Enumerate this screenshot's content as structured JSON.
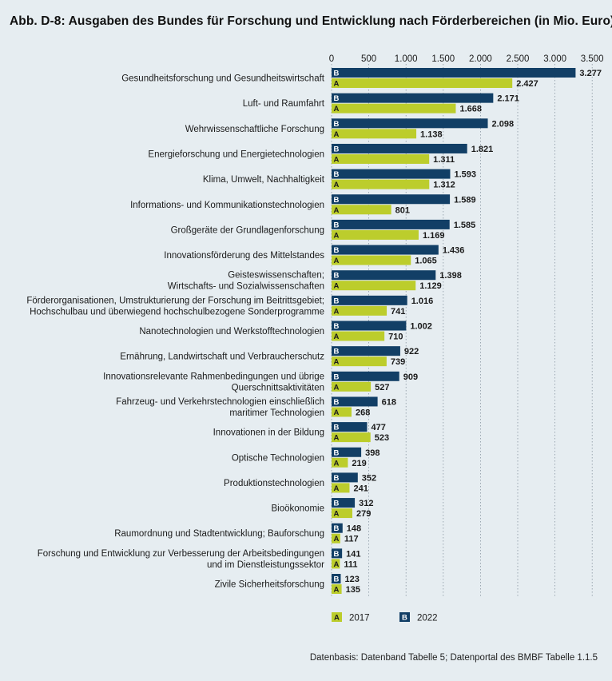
{
  "title": "Abb. D-8: Ausgaben des Bundes für Forschung und Entwicklung nach Förderbereichen (in Mio. Euro)",
  "source_note": "Datenbasis: Datenband Tabelle 5; Datenportal des BMBF Tabelle 1.1.5",
  "colors": {
    "series_2022": "#123f66",
    "series_2017": "#bccd2c",
    "background": "#e6edf1",
    "grid": "#8a97a2"
  },
  "chart_data": {
    "type": "bar",
    "orientation": "horizontal",
    "title": "Abb. D-8: Ausgaben des Bundes für Forschung und Entwicklung nach Förderbereichen (in Mio. Euro)",
    "xlim": [
      0,
      3500
    ],
    "x_ticks": [
      0,
      500,
      1000,
      1500,
      2000,
      2500,
      3000,
      3500
    ],
    "x_tick_labels": [
      "0",
      "500",
      "1.000",
      "1.500",
      "2.000",
      "2.500",
      "3.000",
      "3.500"
    ],
    "x_axis_position": "top",
    "grid": "vertical dashed",
    "legend_position": "bottom",
    "categories": [
      [
        "Gesundheitsforschung und Gesundheitswirtschaft"
      ],
      [
        "Luft- und Raumfahrt"
      ],
      [
        "Wehrwissenschaftliche Forschung"
      ],
      [
        "Energieforschung und Energietechnologien"
      ],
      [
        "Klima, Umwelt, Nachhaltigkeit"
      ],
      [
        "Informations- und Kommunikationstechnologien"
      ],
      [
        "Großgeräte der Grundlagenforschung"
      ],
      [
        "Innovationsförderung des Mittelstandes"
      ],
      [
        "Geisteswissenschaften;",
        "Wirtschafts- und Sozialwissenschaften"
      ],
      [
        "Förderorganisationen, Umstrukturierung der Forschung im Beitrittsgebiet;",
        "Hochschulbau und überwiegend hochschulbezogene Sonderprogramme"
      ],
      [
        "Nanotechnologien und Werkstofftechnologien"
      ],
      [
        "Ernährung, Landwirtschaft und Verbraucherschutz"
      ],
      [
        "Innovationsrelevante Rahmenbedingungen und übrige",
        "Querschnittsaktivitäten"
      ],
      [
        "Fahrzeug- und Verkehrstechnologien einschließlich",
        "maritimer Technologien"
      ],
      [
        "Innovationen in der Bildung"
      ],
      [
        "Optische Technologien"
      ],
      [
        "Produktionstechnologien"
      ],
      [
        "Bioökonomie"
      ],
      [
        "Raumordnung und Stadtentwicklung; Bauforschung"
      ],
      [
        "Forschung und Entwicklung zur Verbesserung der Arbeitsbedingungen",
        "und im Dienstleistungssektor"
      ],
      [
        "Zivile Sicherheitsforschung"
      ]
    ],
    "series": [
      {
        "name": "2022",
        "badge": "B",
        "color": "#123f66",
        "values": [
          3277,
          2171,
          2098,
          1821,
          1593,
          1589,
          1585,
          1436,
          1398,
          1016,
          1002,
          922,
          909,
          618,
          477,
          398,
          352,
          312,
          148,
          141,
          123
        ],
        "labels": [
          "3.277",
          "2.171",
          "2.098",
          "1.821",
          "1.593",
          "1.589",
          "1.585",
          "1.436",
          "1.398",
          "1.016",
          "1.002",
          "922",
          "909",
          "618",
          "477",
          "398",
          "352",
          "312",
          "148",
          "141",
          "123"
        ]
      },
      {
        "name": "2017",
        "badge": "A",
        "color": "#bccd2c",
        "values": [
          2427,
          1668,
          1138,
          1311,
          1312,
          801,
          1169,
          1065,
          1129,
          741,
          710,
          739,
          527,
          268,
          523,
          219,
          241,
          279,
          117,
          111,
          135
        ],
        "labels": [
          "2.427",
          "1.668",
          "1.138",
          "1.311",
          "1.312",
          "801",
          "1.169",
          "1.065",
          "1.129",
          "741",
          "710",
          "739",
          "527",
          "268",
          "523",
          "219",
          "241",
          "279",
          "117",
          "111",
          "135"
        ]
      }
    ],
    "legend": [
      {
        "badge": "A",
        "label": "2017"
      },
      {
        "badge": "B",
        "label": "2022"
      }
    ]
  }
}
